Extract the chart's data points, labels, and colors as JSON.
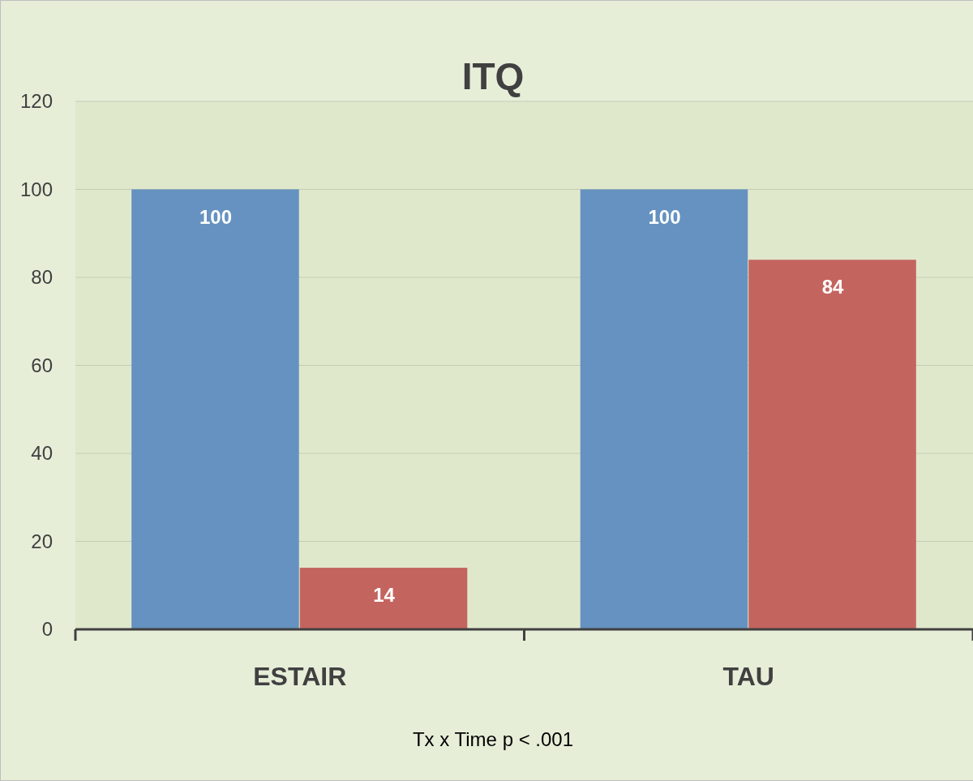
{
  "chart_data": {
    "type": "bar",
    "title": "ITQ",
    "categories": [
      "ESTAIR",
      "TAU"
    ],
    "series": [
      {
        "color": "#6592c0",
        "values": [
          100,
          100
        ]
      },
      {
        "color": "#c4645f",
        "values": [
          14,
          84
        ]
      }
    ],
    "ylim": [
      0,
      120
    ],
    "yticks": [
      0,
      20,
      40,
      60,
      80,
      100,
      120
    ],
    "grid": "y",
    "data_labels": true,
    "annotations": [
      "Tx x Time p < .001"
    ]
  }
}
